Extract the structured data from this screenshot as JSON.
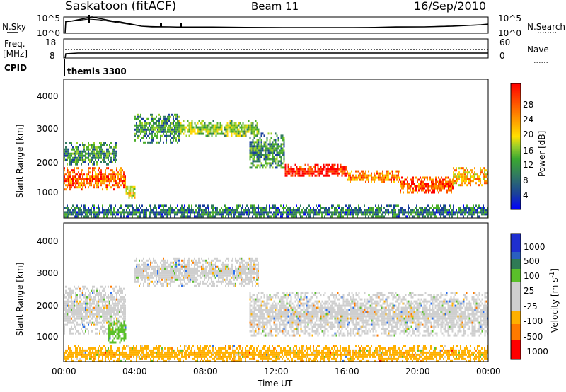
{
  "header": {
    "station": "Saskatoon (fitACF)",
    "beam": "Beam 11",
    "date": "16/Sep/2010"
  },
  "noise_panel": {
    "left_label": "N.Sky",
    "left_ticks": [
      "10^5",
      "10^0"
    ],
    "right_label": "N.Search",
    "right_ticks": [
      "10^5",
      "10^0"
    ]
  },
  "freq_panel": {
    "left_label_1": "Freq.",
    "left_label_2": "[MHz]",
    "left_ticks": [
      "18",
      "8"
    ],
    "right_label": "Nave",
    "right_ticks": [
      "60",
      "0"
    ]
  },
  "cpid": {
    "label": "CPID",
    "mode": "themis 3300"
  },
  "x_axis": {
    "label": "Time UT",
    "ticks": [
      "00:00",
      "04:00",
      "08:00",
      "12:00",
      "16:00",
      "20:00",
      "00:00"
    ]
  },
  "power_panel": {
    "ylabel": "Slant Range [km]",
    "yticks": [
      "1000",
      "2000",
      "3000",
      "4000"
    ],
    "colorbar_label": "Power [dB]",
    "colorbar_ticks": [
      "4",
      "8",
      "12",
      "16",
      "20",
      "24",
      "28"
    ]
  },
  "velocity_panel": {
    "ylabel": "Slant Range [km]",
    "yticks": [
      "1000",
      "2000",
      "3000",
      "4000"
    ],
    "colorbar_label": "Velocity [m s",
    "colorbar_label_sup": "-1",
    "colorbar_label_end": "]",
    "colorbar_ticks": [
      "1000",
      "500",
      "100",
      "25",
      "-25",
      "-100",
      "-500",
      "-1000"
    ]
  },
  "chart_data": [
    {
      "type": "heatmap",
      "title": "Power",
      "xlabel": "Time UT",
      "ylabel": "Slant Range [km]",
      "xlim": [
        0,
        24
      ],
      "ylim": [
        180,
        4600
      ],
      "colorbar": {
        "label": "Power [dB]",
        "range": [
          0,
          30
        ],
        "colors": [
          "#0000ff",
          "#1a3f9c",
          "#317a60",
          "#4caf2a",
          "#9ccf2a",
          "#ffd700",
          "#ff9a00",
          "#ff5000",
          "#ff0000"
        ]
      },
      "echo_regions": [
        {
          "t": [
            0.0,
            3.5
          ],
          "range_km": [
            1100,
            1800
          ],
          "power_db": 24
        },
        {
          "t": [
            0.0,
            3.0
          ],
          "range_km": [
            1900,
            2600
          ],
          "power_db": 10
        },
        {
          "t": [
            3.5,
            4.0
          ],
          "range_km": [
            800,
            1200
          ],
          "power_db": 18
        },
        {
          "t": [
            4.0,
            6.5
          ],
          "range_km": [
            2600,
            3500
          ],
          "power_db": 10
        },
        {
          "t": [
            6.5,
            11.0
          ],
          "range_km": [
            2800,
            3300
          ],
          "power_db": 14
        },
        {
          "t": [
            10.5,
            12.5
          ],
          "range_km": [
            1800,
            2900
          ],
          "power_db": 10
        },
        {
          "t": [
            12.5,
            16.0
          ],
          "range_km": [
            1500,
            1900
          ],
          "power_db": 28
        },
        {
          "t": [
            16.0,
            19.0
          ],
          "range_km": [
            1300,
            1700
          ],
          "power_db": 22
        },
        {
          "t": [
            19.0,
            22.0
          ],
          "range_km": [
            1000,
            1500
          ],
          "power_db": 25
        },
        {
          "t": [
            22.0,
            24.0
          ],
          "range_km": [
            1200,
            1800
          ],
          "power_db": 20
        },
        {
          "t": [
            0.0,
            24.0
          ],
          "range_km": [
            200,
            600
          ],
          "power_db": 8
        }
      ]
    },
    {
      "type": "heatmap",
      "title": "Velocity",
      "xlabel": "Time UT",
      "ylabel": "Slant Range [km]",
      "xlim": [
        0,
        24
      ],
      "ylim": [
        180,
        4600
      ],
      "colorbar": {
        "label": "Velocity [m s-1]",
        "range": [
          -1000,
          1000
        ],
        "colors": [
          "#ff0000",
          "#ff7a00",
          "#ffb000",
          "#cfcfcf",
          "#5ac02a",
          "#2a6ff0",
          "#1f2fd0"
        ]
      },
      "echo_regions": [
        {
          "t": [
            0.0,
            3.5
          ],
          "range_km": [
            1100,
            2600
          ],
          "velocity": 0
        },
        {
          "t": [
            2.5,
            3.5
          ],
          "range_km": [
            800,
            1500
          ],
          "velocity": 150
        },
        {
          "t": [
            4.0,
            11.0
          ],
          "range_km": [
            2600,
            3500
          ],
          "velocity": 0
        },
        {
          "t": [
            10.5,
            24.0
          ],
          "range_km": [
            1000,
            2400
          ],
          "velocity": 0
        },
        {
          "t": [
            0.0,
            24.0
          ],
          "range_km": [
            200,
            700
          ],
          "velocity": -150
        }
      ]
    }
  ]
}
